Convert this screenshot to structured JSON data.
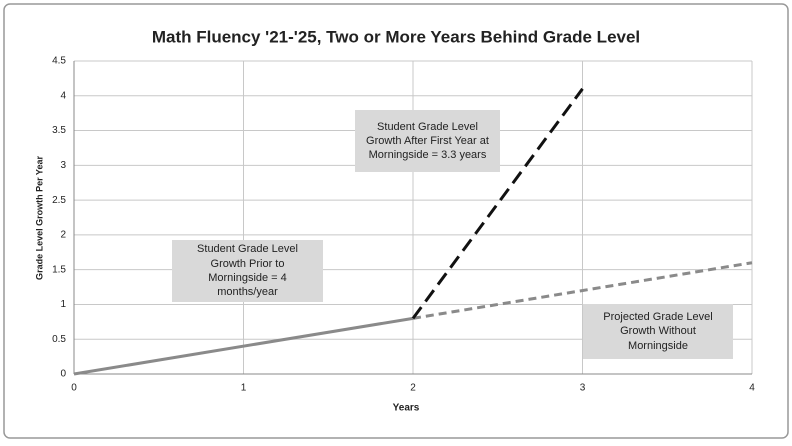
{
  "chart_data": {
    "type": "line",
    "title": "Math Fluency '21-'25, Two or More Years Behind Grade Level",
    "x_label": "Years",
    "y_label": "Grade Level Growth Per Year",
    "xlim": [
      0,
      4
    ],
    "xticks": [
      0,
      1,
      2,
      3,
      4
    ],
    "ylim": [
      0,
      4.5
    ],
    "yticks": [
      0,
      0.5,
      1,
      1.5,
      2,
      2.5,
      3,
      3.5,
      4,
      4.5
    ],
    "grid": true,
    "series": [
      {
        "color": "#8a8a8a",
        "dashed": false,
        "x": [
          0,
          2
        ],
        "values": [
          0,
          0.8
        ]
      },
      {
        "color": "#8a8a8a",
        "dashed": true,
        "x": [
          2,
          4
        ],
        "values": [
          0.8,
          1.6
        ]
      },
      {
        "color": "#111111",
        "dashed": true,
        "x": [
          2,
          3
        ],
        "values": [
          0.8,
          4.1
        ]
      }
    ],
    "annotations": [
      "Student Grade Level Growth After First Year at Morningside = 3.3 years",
      "Student Grade Level Growth Prior to Morningside = 4 months/year",
      "Projected Grade Level Growth Without Morningside"
    ]
  }
}
